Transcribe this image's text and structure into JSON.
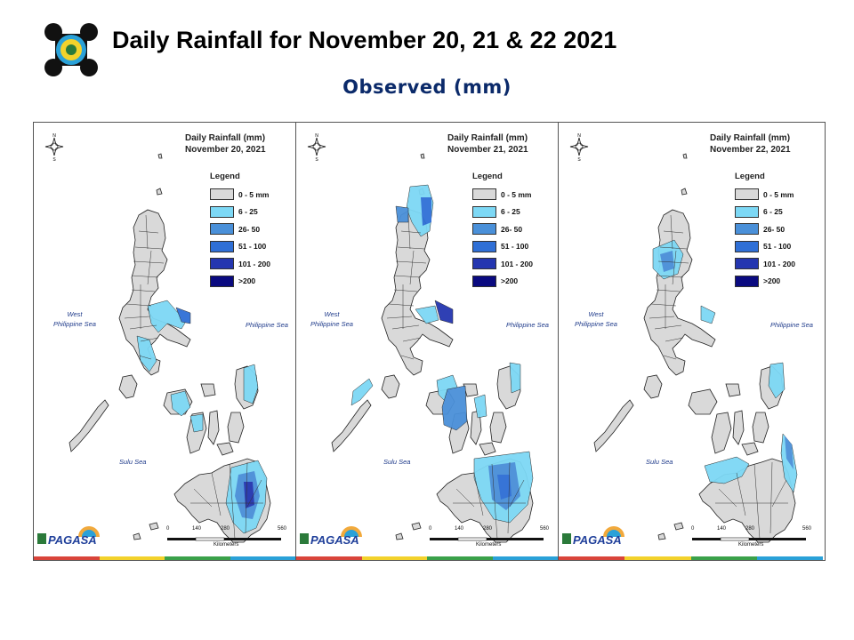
{
  "header": {
    "title": "Daily Rainfall for November 20, 21 & 22  2021",
    "subtitle": "Observed (mm)"
  },
  "legend": {
    "title": "Legend",
    "items": [
      {
        "label": "0 - 5 mm",
        "color": "#d9d9d9"
      },
      {
        "label": "6 - 25",
        "color": "#7dd8f5"
      },
      {
        "label": "26- 50",
        "color": "#4a90d9"
      },
      {
        "label": "51 - 100",
        "color": "#2f6fd6"
      },
      {
        "label": "101 - 200",
        "color": "#2436b0"
      },
      {
        "label": ">200",
        "color": "#0a0a80"
      }
    ]
  },
  "panels": [
    {
      "title_line1": "Daily Rainfall (mm)",
      "title_line2": "November 20, 2021"
    },
    {
      "title_line1": "Daily Rainfall (mm)",
      "title_line2": "November 21, 2021"
    },
    {
      "title_line1": "Daily Rainfall (mm)",
      "title_line2": "November 22, 2021"
    }
  ],
  "seas": {
    "west_line1": "West",
    "west_line2": "Philippine Sea",
    "east": "Philippine Sea",
    "sulu": "Sulu Sea"
  },
  "scale": {
    "t0": "0",
    "t1": "140",
    "t2": "280",
    "t3": "560",
    "unit": "Kilometers"
  },
  "agency": {
    "name": "PAGASA"
  },
  "colors": {
    "land": "#d9d9d9",
    "title_blue": "#0b2a6a"
  }
}
